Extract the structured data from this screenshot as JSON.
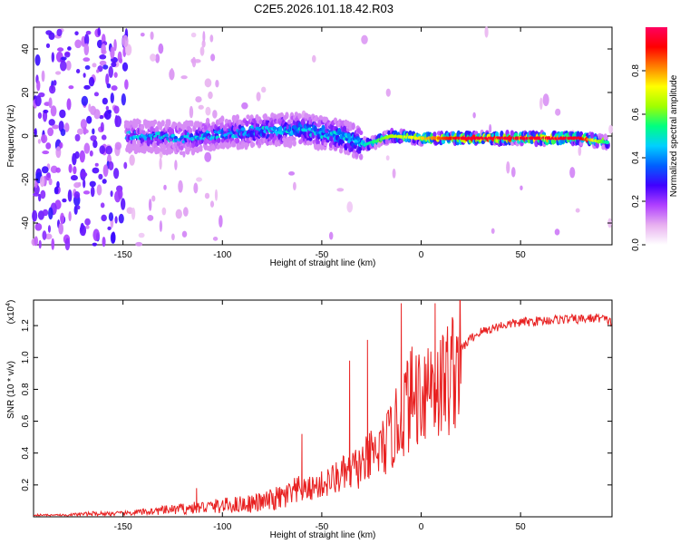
{
  "chart_data": [
    {
      "type": "heatmap",
      "title": "C2E5.2026.101.18.42.R03",
      "xlabel": "Height of straight line (km)",
      "ylabel": "Frequency (Hz)",
      "xlim": [
        -195,
        96
      ],
      "ylim": [
        -50,
        50
      ],
      "x_ticks": [
        -150,
        -100,
        -50,
        0,
        50
      ],
      "y_ticks": [
        -40,
        -20,
        0,
        20,
        40
      ],
      "x_tick_labels": [
        "-150",
        "-100",
        "-50",
        "0",
        "50"
      ],
      "y_tick_labels": [
        "-40",
        "-20",
        "0",
        "20",
        "40"
      ],
      "colorbar": {
        "label": "Normalized spectral amplitude",
        "range": [
          0,
          1
        ],
        "ticks": [
          0.0,
          0.2,
          0.4,
          0.6,
          0.8
        ],
        "tick_labels": [
          "0.0",
          "0.2",
          "0.4",
          "0.6",
          "0.8"
        ],
        "colors": [
          "#ffffff",
          "#e8b0f0",
          "#b040ff",
          "#4000ff",
          "#0060ff",
          "#00d0ff",
          "#00ff80",
          "#a0ff00",
          "#ffff00",
          "#ff8000",
          "#ff0000",
          "#ff0060"
        ]
      },
      "ridge": {
        "description_points": [
          {
            "height_km": -148,
            "freq_hz": 0,
            "amplitude": 0.25
          },
          {
            "height_km": -120,
            "freq_hz": -1,
            "amplitude": 0.3
          },
          {
            "height_km": -90,
            "freq_hz": 2,
            "amplitude": 0.35
          },
          {
            "height_km": -60,
            "freq_hz": 3,
            "amplitude": 0.4
          },
          {
            "height_km": -40,
            "freq_hz": 0,
            "amplitude": 0.45
          },
          {
            "height_km": -28,
            "freq_hz": -4,
            "amplitude": 0.5
          },
          {
            "height_km": -15,
            "freq_hz": 0,
            "amplitude": 0.65
          },
          {
            "height_km": 0,
            "freq_hz": -1,
            "amplitude": 0.75
          },
          {
            "height_km": 20,
            "freq_hz": -1,
            "amplitude": 0.95
          },
          {
            "height_km": 50,
            "freq_hz": -1,
            "amplitude": 0.95
          },
          {
            "height_km": 80,
            "freq_hz": -1,
            "amplitude": 0.95
          },
          {
            "height_km": 94,
            "freq_hz": -3,
            "amplitude": 0.5
          }
        ]
      }
    },
    {
      "type": "line",
      "title": "",
      "xlabel": "Height of straight line (km)",
      "ylabel": "SNR (10 * v/v)",
      "y_scale_label": "(x10",
      "y_scale_exponent": "4",
      "y_scale_suffix": ")",
      "xlim": [
        -195,
        96
      ],
      "ylim": [
        0,
        1.36
      ],
      "x_ticks": [
        -150,
        -100,
        -50,
        0,
        50
      ],
      "y_ticks": [
        0.2,
        0.4,
        0.6,
        0.8,
        1.0,
        1.2
      ],
      "x_tick_labels": [
        "-150",
        "-100",
        "-50",
        "0",
        "50"
      ],
      "y_tick_labels": [
        "0.2",
        "0.4",
        "0.6",
        "0.8",
        "1.0",
        "1.2"
      ],
      "series": [
        {
          "name": "SNR",
          "color": "#e82020",
          "x": [
            -195,
            -180,
            -165,
            -150,
            -140,
            -130,
            -120,
            -110,
            -100,
            -90,
            -80,
            -70,
            -60,
            -50,
            -40,
            -30,
            -25,
            -20,
            -15,
            -10,
            -8,
            -5,
            0,
            5,
            10,
            15,
            20,
            25,
            30,
            40,
            50,
            60,
            70,
            80,
            90,
            96
          ],
          "values": [
            0.01,
            0.01,
            0.02,
            0.02,
            0.03,
            0.04,
            0.05,
            0.06,
            0.07,
            0.08,
            0.09,
            0.12,
            0.16,
            0.2,
            0.26,
            0.32,
            0.38,
            0.42,
            0.5,
            0.62,
            0.7,
            0.74,
            0.8,
            0.86,
            0.82,
            0.9,
            1.05,
            1.12,
            1.16,
            1.2,
            1.22,
            1.23,
            1.24,
            1.24,
            1.25,
            1.22
          ],
          "spikes": [
            {
              "x": -10,
              "y": 1.34
            },
            {
              "x": 7,
              "y": 1.34
            },
            {
              "x": -27,
              "y": 1.11
            },
            {
              "x": -36,
              "y": 0.98
            },
            {
              "x": -60,
              "y": 0.52
            },
            {
              "x": -113,
              "y": 0.18
            }
          ]
        }
      ]
    }
  ]
}
